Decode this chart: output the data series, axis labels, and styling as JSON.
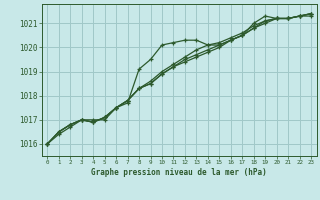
{
  "title": "Graphe pression niveau de la mer (hPa)",
  "background_color": "#c8e8e8",
  "grid_color": "#a0c8c8",
  "line_color": "#2d5a2d",
  "xlim": [
    -0.5,
    23.5
  ],
  "ylim": [
    1015.5,
    1021.8
  ],
  "yticks": [
    1016,
    1017,
    1018,
    1019,
    1020,
    1021
  ],
  "xtick_labels": [
    "0",
    "1",
    "2",
    "3",
    "4",
    "5",
    "6",
    "7",
    "8",
    "9",
    "10",
    "11",
    "12",
    "13",
    "14",
    "15",
    "16",
    "17",
    "18",
    "19",
    "20",
    "21",
    "22",
    "23"
  ],
  "series": [
    [
      1016.0,
      1016.4,
      1016.7,
      1017.0,
      1017.0,
      1017.0,
      1017.5,
      1017.7,
      1019.1,
      1019.5,
      1020.1,
      1020.2,
      1020.3,
      1020.3,
      1020.1,
      1020.1,
      1020.3,
      1020.5,
      1021.0,
      1021.3,
      1021.2,
      1021.2,
      1021.3,
      1021.3
    ],
    [
      1016.0,
      1016.5,
      1016.8,
      1017.0,
      1016.9,
      1017.1,
      1017.5,
      1017.8,
      1018.3,
      1018.6,
      1019.0,
      1019.3,
      1019.6,
      1019.9,
      1020.1,
      1020.2,
      1020.4,
      1020.6,
      1020.9,
      1021.1,
      1021.2,
      1021.2,
      1021.3,
      1021.4
    ],
    [
      1016.0,
      1016.5,
      1016.8,
      1017.0,
      1016.9,
      1017.1,
      1017.5,
      1017.8,
      1018.3,
      1018.5,
      1018.9,
      1019.2,
      1019.5,
      1019.7,
      1019.9,
      1020.1,
      1020.3,
      1020.5,
      1020.8,
      1021.0,
      1021.2,
      1021.2,
      1021.3,
      1021.4
    ],
    [
      1016.0,
      1016.5,
      1016.8,
      1017.0,
      1016.9,
      1017.1,
      1017.5,
      1017.8,
      1018.3,
      1018.5,
      1018.9,
      1019.2,
      1019.4,
      1019.6,
      1019.8,
      1020.0,
      1020.3,
      1020.5,
      1020.8,
      1021.1,
      1021.2,
      1021.2,
      1021.3,
      1021.4
    ]
  ]
}
